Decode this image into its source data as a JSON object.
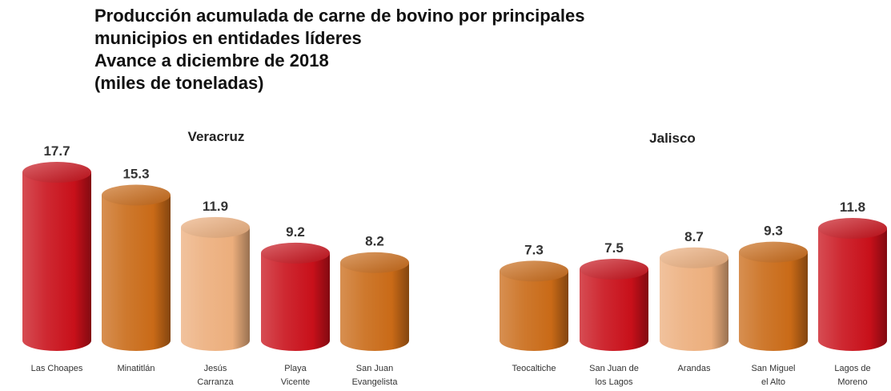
{
  "title_lines": [
    "Producción acumulada de carne de bovino por principales",
    "municipios en entidades líderes",
    "Avance a diciembre de 2018",
    "(miles de toneladas)"
  ],
  "colors": {
    "red": "#c8101a",
    "orange": "#c96a17",
    "peach": "#ecae7c"
  },
  "chart_data": [
    {
      "type": "bar",
      "title": "Veracruz",
      "categories": [
        "Las Choapes",
        "Minatitlán",
        "Jesús Carranza",
        "Playa Vicente",
        "San Juan Evangelista"
      ],
      "values": [
        17.7,
        15.3,
        11.9,
        9.2,
        8.2
      ],
      "bar_colors": [
        "red",
        "orange",
        "peach",
        "red",
        "orange"
      ],
      "ylim": [
        0,
        20
      ]
    },
    {
      "type": "bar",
      "title": "Jalisco",
      "categories": [
        "Teocaltiche",
        "San Juan de los Lagos",
        "Arandas",
        "San Miguel el Alto",
        "Lagos de Moreno"
      ],
      "values": [
        7.3,
        7.5,
        8.7,
        9.3,
        11.8
      ],
      "bar_colors": [
        "orange",
        "red",
        "peach",
        "orange",
        "red"
      ],
      "ylim": [
        0,
        20
      ]
    }
  ]
}
